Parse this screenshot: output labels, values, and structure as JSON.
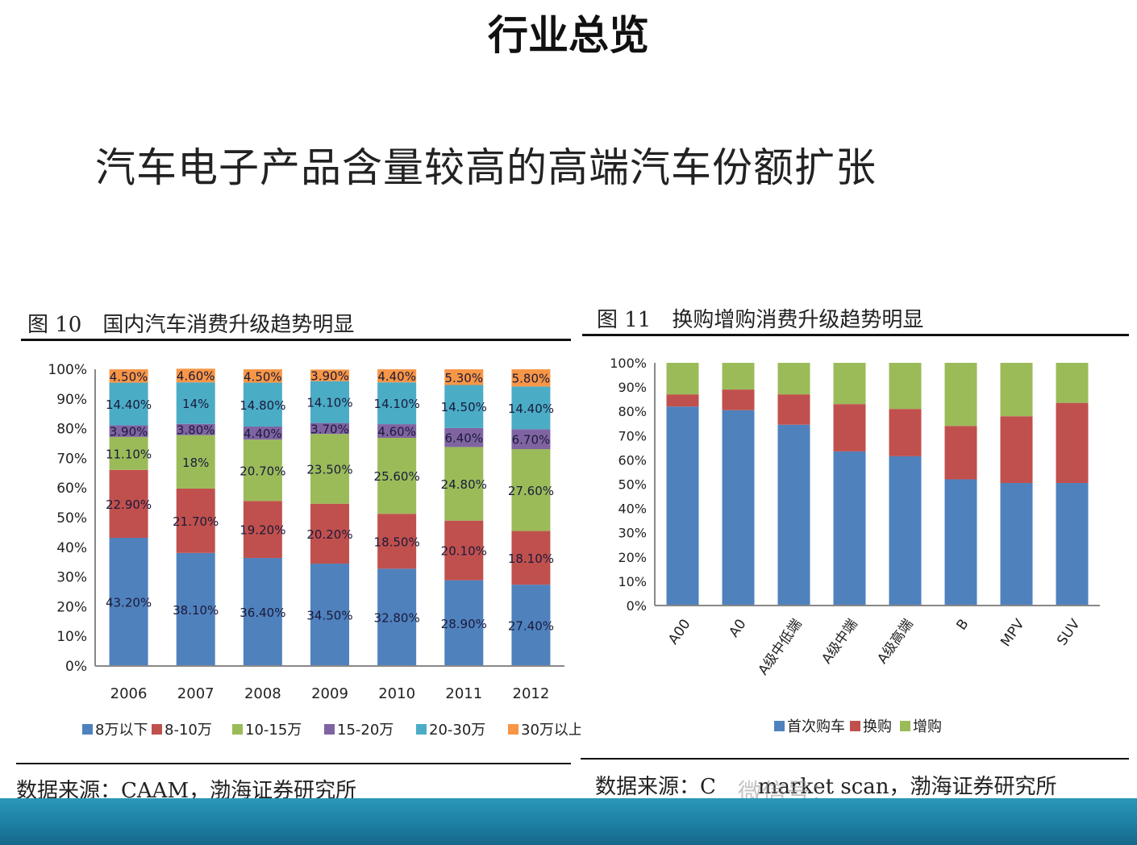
{
  "title": "行业总览",
  "headline": "汽车电子产品含量较高的高端汽车份额扩张",
  "figures": [
    {
      "label": "图 10　国内汽车消费升级趋势明显",
      "source": "数据来源：CAAM，渤海证券研究所"
    },
    {
      "label": "图 11　换购增购消费升级趋势明显",
      "source": "数据来源：C",
      "source_tail": "market scan，渤海证券研究所"
    }
  ],
  "watermark": "微信号：",
  "chart_data": [
    {
      "type": "bar",
      "stacked": true,
      "categories": [
        "2006",
        "2007",
        "2008",
        "2009",
        "2010",
        "2011",
        "2012"
      ],
      "series": [
        {
          "name": "8万以下",
          "color": "#4f81bd",
          "values": [
            43.2,
            38.1,
            36.4,
            34.5,
            32.8,
            28.9,
            27.4
          ],
          "labels": [
            "43.20%",
            "38.10%",
            "36.40%",
            "34.50%",
            "32.80%",
            "28.90%",
            "27.40%"
          ]
        },
        {
          "name": "8-10万",
          "color": "#c0504d",
          "values": [
            22.9,
            21.7,
            19.2,
            20.2,
            18.5,
            20.1,
            18.1
          ],
          "labels": [
            "22.90%",
            "21.70%",
            "19.20%",
            "20.20%",
            "18.50%",
            "20.10%",
            "18.10%"
          ]
        },
        {
          "name": "10-15万",
          "color": "#9bbb59",
          "values": [
            11.1,
            18,
            20.7,
            23.5,
            25.6,
            24.8,
            27.6
          ],
          "labels": [
            "11.10%",
            "18%",
            "20.70%",
            "23.50%",
            "25.60%",
            "24.80%",
            "27.60%"
          ]
        },
        {
          "name": "15-20万",
          "color": "#8064a2",
          "values": [
            3.9,
            3.8,
            4.4,
            3.7,
            4.6,
            6.4,
            6.7
          ],
          "labels": [
            "3.90%",
            "3.80%",
            "4.40%",
            "3.70%",
            "4.60%",
            "6.40%",
            "6.70%"
          ]
        },
        {
          "name": "20-30万",
          "color": "#4bacc6",
          "values": [
            14.4,
            14,
            14.8,
            14.1,
            14.1,
            14.5,
            14.4
          ],
          "labels": [
            "14.40%",
            "14%",
            "14.80%",
            "14.10%",
            "14.10%",
            "14.50%",
            "14.40%"
          ]
        },
        {
          "name": "30万以上",
          "color": "#f79646",
          "values": [
            4.5,
            4.6,
            4.5,
            3.9,
            4.4,
            5.3,
            5.8
          ],
          "labels": [
            "4.50%",
            "4.60%",
            "4.50%",
            "3.90%",
            "4.40%",
            "5.30%",
            "5.80%"
          ]
        }
      ],
      "yticks": [
        "0%",
        "10%",
        "20%",
        "30%",
        "40%",
        "50%",
        "60%",
        "70%",
        "80%",
        "90%",
        "100%"
      ],
      "ylim": [
        0,
        100
      ],
      "legend": "bottom"
    },
    {
      "type": "bar",
      "stacked": true,
      "categories": [
        "A00",
        "A0",
        "A级中低端",
        "A级中端",
        "A级高端",
        "B",
        "MPV",
        "SUV"
      ],
      "series": [
        {
          "name": "首次购车",
          "color": "#4f81bd",
          "values": [
            82,
            80.5,
            74.5,
            63.5,
            61.5,
            52,
            50.5,
            50.5
          ]
        },
        {
          "name": "换购",
          "color": "#c0504d",
          "values": [
            5,
            8.5,
            12.5,
            19.5,
            19.5,
            22,
            27.5,
            33
          ]
        },
        {
          "name": "增购",
          "color": "#9bbb59",
          "values": [
            13,
            11,
            13,
            17,
            19,
            26,
            22,
            16.5
          ]
        }
      ],
      "yticks": [
        "0%",
        "10%",
        "20%",
        "30%",
        "40%",
        "50%",
        "60%",
        "70%",
        "80%",
        "90%",
        "100%"
      ],
      "ylim": [
        0,
        100
      ],
      "legend": "bottom"
    }
  ]
}
